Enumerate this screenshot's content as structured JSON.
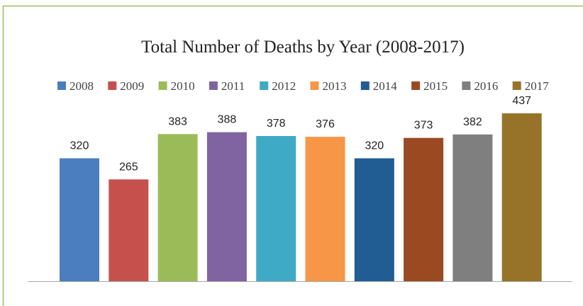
{
  "chart_data": {
    "type": "bar",
    "title": "Total Number of Deaths by Year (2008-2017)",
    "xlabel": "",
    "ylabel": "",
    "categories": [
      "2008",
      "2009",
      "2010",
      "2011",
      "2012",
      "2013",
      "2014",
      "2015",
      "2016",
      "2017"
    ],
    "values": [
      320,
      265,
      383,
      388,
      378,
      376,
      320,
      373,
      382,
      437
    ],
    "data_labels": [
      "320",
      "265",
      "383",
      "388",
      "378",
      "376",
      "320",
      "373",
      "382",
      "437"
    ],
    "colors": [
      "#4a7ebf",
      "#c5504c",
      "#9bbb59",
      "#8064a2",
      "#3faac5",
      "#f79646",
      "#215c93",
      "#9b4921",
      "#7f7f80",
      "#977329"
    ],
    "ylim": [
      0,
      470
    ],
    "grid": false,
    "legend": "top",
    "show_category_axis_labels": false,
    "frame_color": "#9bbb59"
  }
}
